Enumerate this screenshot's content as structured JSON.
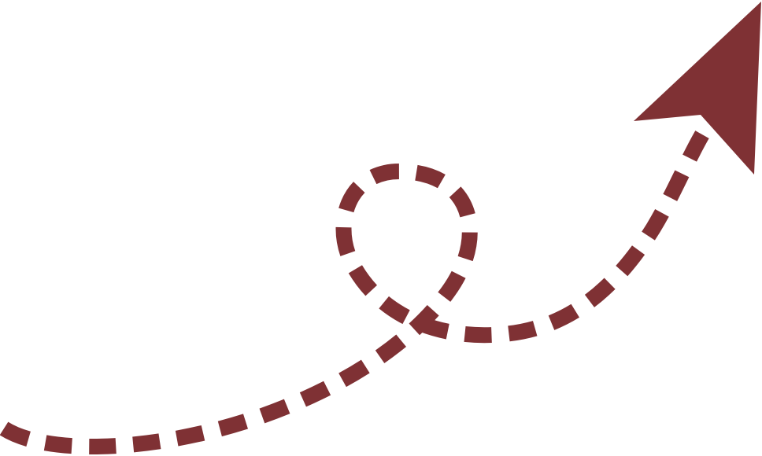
{
  "graphic": {
    "type": "dashed-looping-arrow",
    "color": "#7f3134",
    "background": "#ffffff"
  }
}
